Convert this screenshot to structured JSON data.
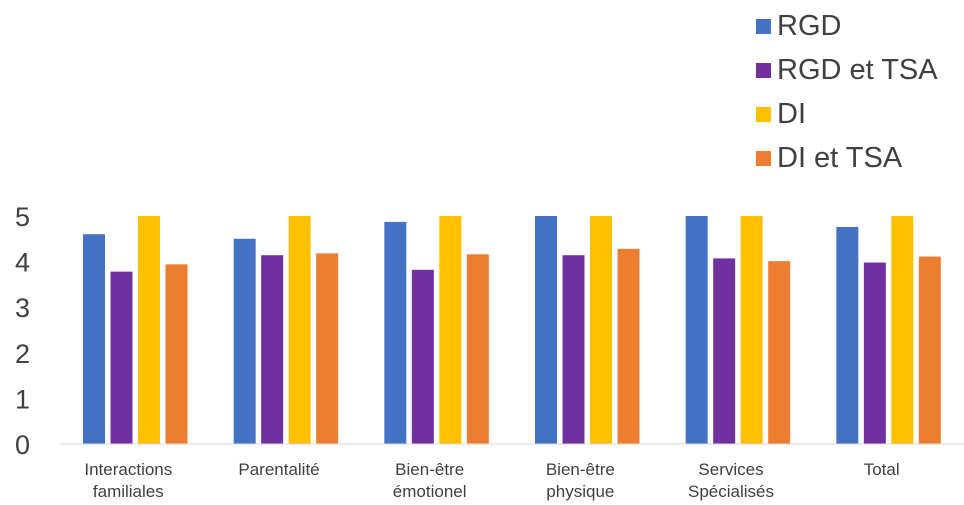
{
  "chart_data": {
    "type": "bar",
    "title": "",
    "xlabel": "",
    "ylabel": "",
    "ylim": [
      0,
      5
    ],
    "yticks": [
      "0",
      "1",
      "2",
      "3",
      "4",
      "5"
    ],
    "categories": [
      [
        "Interactions",
        "familiales"
      ],
      [
        "Parentalité"
      ],
      [
        "Bien-être",
        "émotionel"
      ],
      [
        "Bien-être",
        "physique"
      ],
      [
        "Services",
        "Spécialisés"
      ],
      [
        "Total"
      ]
    ],
    "series": [
      {
        "name": "RGD",
        "color": "#4472C4",
        "values": [
          4.6,
          4.5,
          4.87,
          5.0,
          5.0,
          4.76
        ]
      },
      {
        "name": "RGD et TSA",
        "color": "#7030A0",
        "values": [
          3.78,
          4.14,
          3.82,
          4.14,
          4.07,
          3.98
        ]
      },
      {
        "name": "DI",
        "color": "#FFC000",
        "values": [
          5.0,
          5.0,
          5.0,
          5.0,
          5.0,
          5.0
        ]
      },
      {
        "name": "DI et TSA",
        "color": "#ED7D31",
        "values": [
          3.94,
          4.18,
          4.16,
          4.28,
          4.01,
          4.11
        ]
      }
    ],
    "grid": false,
    "legend_position": "top-right"
  }
}
